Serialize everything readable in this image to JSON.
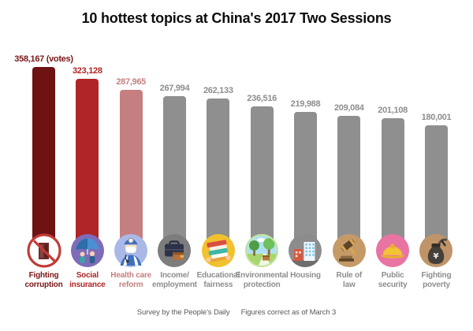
{
  "title": "10 hottest topics at China's 2017 Two Sessions",
  "footer": {
    "source": "Survey by the People's Daily",
    "note": "Figures correct as of March 3"
  },
  "chart_data": {
    "type": "bar",
    "title": "10 hottest topics at China's 2017 Two Sessions",
    "categories": [
      "Fighting corruption",
      "Social insurance",
      "Health care reform",
      "Income/employment",
      "Educational fairness",
      "Environmental protection",
      "Housing",
      "Rule of law",
      "Public security",
      "Fighting poverty"
    ],
    "category_lines": [
      [
        "Fighting",
        "corruption"
      ],
      [
        "Social",
        "insurance"
      ],
      [
        "Health care",
        "reform"
      ],
      [
        "Income/",
        "employment"
      ],
      [
        "Educational",
        "fairness"
      ],
      [
        "Environmental",
        "protection"
      ],
      [
        "Housing"
      ],
      [
        "Rule of",
        "law"
      ],
      [
        "Public",
        "security"
      ],
      [
        "Fighting",
        "poverty"
      ]
    ],
    "values": [
      358167,
      323128,
      287965,
      267994,
      262133,
      236516,
      219988,
      209084,
      201108,
      180001
    ],
    "value_labels": [
      "358,167 (votes)",
      "323,128",
      "287,965",
      "267,994",
      "262,133",
      "236,516",
      "219,988",
      "209,084",
      "201,108",
      "180,001"
    ],
    "unit": "votes",
    "bar_colors": [
      "#6E1213",
      "#B02526",
      "#C67F80",
      "#8F8F8F",
      "#8F8F8F",
      "#8F8F8F",
      "#8F8F8F",
      "#8F8F8F",
      "#8F8F8F",
      "#8F8F8F"
    ],
    "label_colors": [
      "#7A1516",
      "#B02526",
      "#C67F80",
      "#8E8E8E",
      "#8E8E8E",
      "#8E8E8E",
      "#8E8E8E",
      "#8E8E8E",
      "#8E8E8E",
      "#8E8E8E"
    ],
    "icons": [
      "no-corruption-icon",
      "insurance-umbrella-icon",
      "doctor-icon",
      "briefcase-wallet-icon",
      "books-stack-icon",
      "park-trees-icon",
      "city-buildings-icon",
      "gavel-icon",
      "hard-hat-icon",
      "money-sack-icon"
    ],
    "icon_bg_colors": [
      "#FFFFFF",
      "#7E6CB8",
      "#A9B8E6",
      "#7D7D7D",
      "#F2C12E",
      "#AFE0F2",
      "#8C8C8C",
      "#C59A67",
      "#E874A4",
      "#BF9468"
    ],
    "xlabel": "",
    "ylabel": "",
    "grid": false,
    "legend": false
  }
}
